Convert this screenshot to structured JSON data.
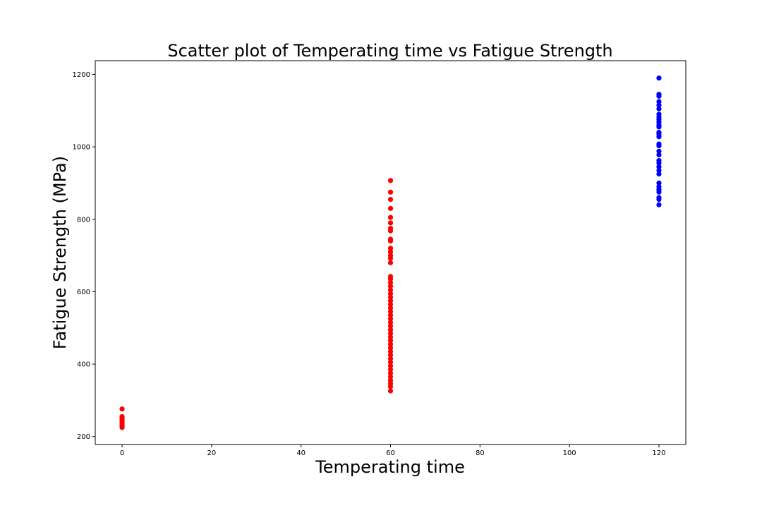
{
  "chart_data": {
    "type": "scatter",
    "title": "Scatter plot of Temperating time vs Fatigue Strength",
    "xlabel": "Temperating time",
    "ylabel": "Fatigue Strength (MPa)",
    "xlim": [
      -6,
      126
    ],
    "ylim": [
      178,
      1238
    ],
    "x_ticks": [
      0,
      20,
      40,
      60,
      80,
      100,
      120
    ],
    "y_ticks": [
      200,
      400,
      600,
      800,
      1000,
      1200
    ],
    "grid": false,
    "legend": "none",
    "series": [
      {
        "color": "#ff0000",
        "points": [
          {
            "x": 0,
            "y": 225
          },
          {
            "x": 0,
            "y": 230
          },
          {
            "x": 0,
            "y": 235
          },
          {
            "x": 0,
            "y": 240
          },
          {
            "x": 0,
            "y": 245
          },
          {
            "x": 0,
            "y": 250
          },
          {
            "x": 0,
            "y": 255
          },
          {
            "x": 0,
            "y": 276
          },
          {
            "x": 60,
            "y": 326
          },
          {
            "x": 60,
            "y": 338
          },
          {
            "x": 60,
            "y": 346
          },
          {
            "x": 60,
            "y": 355
          },
          {
            "x": 60,
            "y": 365
          },
          {
            "x": 60,
            "y": 375
          },
          {
            "x": 60,
            "y": 385
          },
          {
            "x": 60,
            "y": 395
          },
          {
            "x": 60,
            "y": 405
          },
          {
            "x": 60,
            "y": 415
          },
          {
            "x": 60,
            "y": 425
          },
          {
            "x": 60,
            "y": 435
          },
          {
            "x": 60,
            "y": 445
          },
          {
            "x": 60,
            "y": 455
          },
          {
            "x": 60,
            "y": 465
          },
          {
            "x": 60,
            "y": 475
          },
          {
            "x": 60,
            "y": 485
          },
          {
            "x": 60,
            "y": 495
          },
          {
            "x": 60,
            "y": 505
          },
          {
            "x": 60,
            "y": 515
          },
          {
            "x": 60,
            "y": 525
          },
          {
            "x": 60,
            "y": 535
          },
          {
            "x": 60,
            "y": 545
          },
          {
            "x": 60,
            "y": 555
          },
          {
            "x": 60,
            "y": 565
          },
          {
            "x": 60,
            "y": 575
          },
          {
            "x": 60,
            "y": 585
          },
          {
            "x": 60,
            "y": 595
          },
          {
            "x": 60,
            "y": 605
          },
          {
            "x": 60,
            "y": 615
          },
          {
            "x": 60,
            "y": 625
          },
          {
            "x": 60,
            "y": 635
          },
          {
            "x": 60,
            "y": 642
          },
          {
            "x": 60,
            "y": 680
          },
          {
            "x": 60,
            "y": 692
          },
          {
            "x": 60,
            "y": 700
          },
          {
            "x": 60,
            "y": 710
          },
          {
            "x": 60,
            "y": 720
          },
          {
            "x": 60,
            "y": 740
          },
          {
            "x": 60,
            "y": 745
          },
          {
            "x": 60,
            "y": 768
          },
          {
            "x": 60,
            "y": 775
          },
          {
            "x": 60,
            "y": 790
          },
          {
            "x": 60,
            "y": 805
          },
          {
            "x": 60,
            "y": 830
          },
          {
            "x": 60,
            "y": 855
          },
          {
            "x": 60,
            "y": 875
          },
          {
            "x": 60,
            "y": 907
          }
        ]
      },
      {
        "color": "#0000ff",
        "points": [
          {
            "x": 120,
            "y": 840
          },
          {
            "x": 120,
            "y": 855
          },
          {
            "x": 120,
            "y": 860
          },
          {
            "x": 120,
            "y": 875
          },
          {
            "x": 120,
            "y": 882
          },
          {
            "x": 120,
            "y": 890
          },
          {
            "x": 120,
            "y": 900
          },
          {
            "x": 120,
            "y": 925
          },
          {
            "x": 120,
            "y": 935
          },
          {
            "x": 120,
            "y": 945
          },
          {
            "x": 120,
            "y": 955
          },
          {
            "x": 120,
            "y": 962
          },
          {
            "x": 120,
            "y": 978
          },
          {
            "x": 120,
            "y": 988
          },
          {
            "x": 120,
            "y": 1003
          },
          {
            "x": 120,
            "y": 1008
          },
          {
            "x": 120,
            "y": 1028
          },
          {
            "x": 120,
            "y": 1035
          },
          {
            "x": 120,
            "y": 1040
          },
          {
            "x": 120,
            "y": 1055
          },
          {
            "x": 120,
            "y": 1060
          },
          {
            "x": 120,
            "y": 1068
          },
          {
            "x": 120,
            "y": 1075
          },
          {
            "x": 120,
            "y": 1082
          },
          {
            "x": 120,
            "y": 1090
          },
          {
            "x": 120,
            "y": 1105
          },
          {
            "x": 120,
            "y": 1115
          },
          {
            "x": 120,
            "y": 1125
          },
          {
            "x": 120,
            "y": 1140
          },
          {
            "x": 120,
            "y": 1145
          },
          {
            "x": 120,
            "y": 1190
          }
        ]
      }
    ]
  }
}
